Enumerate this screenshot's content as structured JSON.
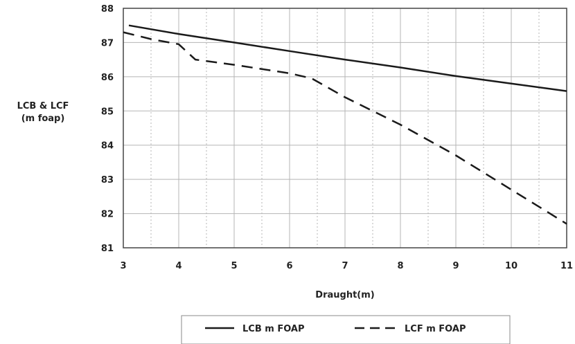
{
  "chart_data": {
    "type": "line",
    "xlabel": "Draught(m)",
    "ylabel": [
      "LCB & LCF",
      "(m foap)"
    ],
    "xlim": [
      3,
      11
    ],
    "ylim": [
      81,
      88
    ],
    "xticks": [
      "3",
      "4",
      "5",
      "6",
      "7",
      "8",
      "9",
      "10",
      "11"
    ],
    "yticks": [
      "81",
      "82",
      "83",
      "84",
      "85",
      "86",
      "87",
      "88"
    ],
    "grid": true,
    "legend_position": "bottom",
    "series": [
      {
        "name": "LCB m FOAP",
        "style": "solid",
        "color": "#1a1a1a",
        "x": [
          3.1,
          4,
          5,
          6,
          7,
          8,
          9,
          10,
          11
        ],
        "y": [
          87.5,
          87.25,
          87.0,
          86.75,
          86.5,
          86.27,
          86.02,
          85.8,
          85.58
        ]
      },
      {
        "name": "LCF m FOAP",
        "style": "dashed",
        "color": "#1a1a1a",
        "x": [
          3.0,
          3.5,
          4.0,
          4.3,
          5.0,
          6.0,
          6.4,
          7.0,
          8.0,
          9.0,
          10.0,
          10.5,
          11.0
        ],
        "y": [
          87.3,
          87.1,
          86.95,
          86.5,
          86.35,
          86.1,
          85.95,
          85.4,
          84.6,
          83.7,
          82.7,
          82.2,
          81.7
        ]
      }
    ]
  }
}
